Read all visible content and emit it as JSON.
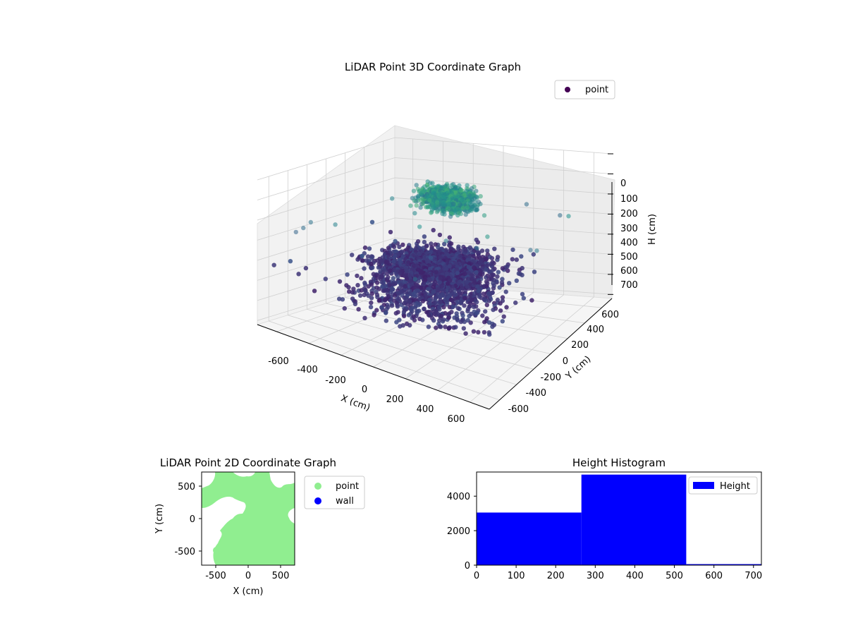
{
  "colors": {
    "point_dark": "#440154",
    "point_mid": "#3b528b",
    "point_teal": "#21918c",
    "point_green": "#5ec962",
    "point_light": "#b5de2b",
    "map_point": "#90ee90",
    "wall": "#0000ff",
    "histogram": "#0000ff"
  },
  "chart_data": [
    {
      "type": "scatter",
      "projection": "3d",
      "title": "LiDAR Point 3D Coordinate Graph",
      "xlabel": "X (cm)",
      "ylabel": "Y (cm)",
      "zlabel": "H (cm)",
      "xlim": [
        -720,
        720
      ],
      "ylim": [
        -720,
        720
      ],
      "zlim": [
        0,
        720
      ],
      "z_inverted": true,
      "x_ticks": [
        "-600",
        "-400",
        "-200",
        "0",
        "200",
        "400",
        "600"
      ],
      "y_ticks": [
        "-600",
        "-400",
        "-200",
        "0",
        "200",
        "400",
        "600"
      ],
      "z_ticks": [
        "0",
        "100",
        "200",
        "300",
        "400",
        "500",
        "600",
        "700"
      ],
      "legend": {
        "position": "top-right",
        "entries": [
          "point"
        ]
      },
      "colormap": "viridis (by H)",
      "grid": true,
      "series": [
        {
          "name": "point",
          "description_clusters": [
            {
              "center": [
                0,
                100,
                80
              ],
              "spread": [
                230,
                180,
                40
              ],
              "count": 900,
              "h_range": [
                60,
                140
              ]
            },
            {
              "center": [
                -50,
                50,
                420
              ],
              "spread": [
                480,
                420,
                40
              ],
              "count": 1400,
              "h_range": [
                400,
                450
              ]
            },
            {
              "center": [
                0,
                -50,
                530
              ],
              "spread": [
                640,
                620,
                30
              ],
              "count": 800,
              "h_range": [
                520,
                560
              ]
            }
          ]
        }
      ]
    },
    {
      "type": "scatter",
      "title": "LiDAR Point 2D Coordinate Graph",
      "xlabel": "X (cm)",
      "ylabel": "Y (cm)",
      "xlim": [
        -720,
        720
      ],
      "ylim": [
        -720,
        720
      ],
      "x_ticks": [
        "-500",
        "0",
        "500"
      ],
      "y_ticks": [
        "500",
        "0",
        "-500"
      ],
      "legend": {
        "position": "outside-right",
        "entries": [
          "point",
          "wall"
        ]
      },
      "grid": false,
      "series": [
        {
          "name": "point",
          "coverage": "dense fill over most of plot area"
        },
        {
          "name": "wall",
          "values": []
        }
      ]
    },
    {
      "type": "bar",
      "subtype": "histogram",
      "title": "Height Histogram",
      "xlabel": "",
      "ylabel": "",
      "xlim": [
        0,
        720
      ],
      "ylim": [
        0,
        5400
      ],
      "x_ticks": [
        "0",
        "100",
        "200",
        "300",
        "400",
        "500",
        "600",
        "700"
      ],
      "y_ticks": [
        "0",
        "2000",
        "4000"
      ],
      "legend": {
        "position": "top-right",
        "entries": [
          "Height"
        ]
      },
      "bins": [
        {
          "start": 0,
          "end": 265,
          "count": 3050
        },
        {
          "start": 265,
          "end": 530,
          "count": 5250
        },
        {
          "start": 530,
          "end": 720,
          "count": 60
        }
      ],
      "series": [
        {
          "name": "Height",
          "values": [
            3050,
            5250,
            60
          ]
        }
      ]
    }
  ]
}
